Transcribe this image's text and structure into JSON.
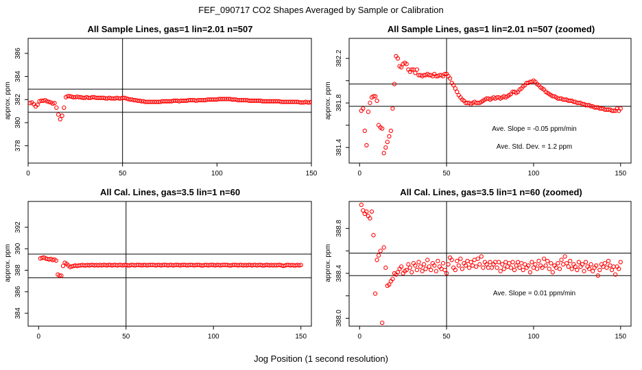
{
  "figure": {
    "title": "FEF_090717  CO2 Shapes Averaged by Sample or Calibration",
    "xlabel": "Jog Position (1 second resolution)"
  },
  "colors": {
    "points": "#ff0000",
    "axes": "#000000",
    "background": "#ffffff"
  },
  "chart_data": [
    {
      "type": "scatter",
      "title": "All Sample Lines, gas=1 lin=2.01 n=507",
      "ylabel": "approx. ppm",
      "xlim": [
        0,
        150
      ],
      "ylim": [
        376.5,
        387.3
      ],
      "xticks": [
        0,
        50,
        100,
        150
      ],
      "yticks": [
        378,
        380,
        382,
        384,
        386
      ],
      "hlines": [
        380.9,
        382.9
      ],
      "vlines": [
        50
      ],
      "annotations": [],
      "x": [
        1,
        2,
        3,
        4,
        5,
        6,
        7,
        8,
        9,
        10,
        11,
        12,
        13,
        14,
        15,
        16,
        17,
        18,
        19,
        20,
        21,
        22,
        23,
        24,
        25,
        26,
        27,
        28,
        29,
        30,
        31,
        32,
        33,
        34,
        35,
        36,
        37,
        38,
        39,
        40,
        41,
        42,
        43,
        44,
        45,
        46,
        47,
        48,
        49,
        50,
        51,
        52,
        53,
        54,
        55,
        56,
        57,
        58,
        59,
        60,
        61,
        62,
        63,
        64,
        65,
        66,
        67,
        68,
        69,
        70,
        71,
        72,
        73,
        74,
        75,
        76,
        77,
        78,
        79,
        80,
        81,
        82,
        83,
        84,
        85,
        86,
        87,
        88,
        89,
        90,
        91,
        92,
        93,
        94,
        95,
        96,
        97,
        98,
        99,
        100,
        101,
        102,
        103,
        104,
        105,
        106,
        107,
        108,
        109,
        110,
        111,
        112,
        113,
        114,
        115,
        116,
        117,
        118,
        119,
        120,
        121,
        122,
        123,
        124,
        125,
        126,
        127,
        128,
        129,
        130,
        131,
        132,
        133,
        134,
        135,
        136,
        137,
        138,
        139,
        140,
        141,
        142,
        143,
        144,
        145,
        146,
        147,
        148,
        149,
        150
      ],
      "y": [
        381.7,
        381.75,
        381.6,
        381.4,
        381.55,
        381.85,
        381.9,
        381.9,
        381.95,
        381.85,
        381.8,
        381.75,
        381.65,
        381.7,
        381.3,
        380.7,
        380.3,
        380.6,
        381.3,
        382.2,
        382.3,
        382.3,
        382.25,
        382.2,
        382.2,
        382.25,
        382.2,
        382.2,
        382.15,
        382.15,
        382.2,
        382.15,
        382.15,
        382.2,
        382.2,
        382.15,
        382.15,
        382.15,
        382.15,
        382.15,
        382.1,
        382.1,
        382.15,
        382.1,
        382.1,
        382.1,
        382.15,
        382.1,
        382.1,
        382.15,
        382.15,
        382.1,
        382.05,
        382,
        382,
        381.95,
        381.95,
        381.9,
        381.9,
        381.85,
        381.85,
        381.8,
        381.8,
        381.8,
        381.8,
        381.8,
        381.8,
        381.8,
        381.8,
        381.8,
        381.85,
        381.85,
        381.85,
        381.85,
        381.85,
        381.85,
        381.9,
        381.9,
        381.9,
        381.85,
        381.9,
        381.9,
        381.9,
        381.9,
        381.95,
        381.95,
        381.95,
        381.95,
        381.9,
        381.95,
        381.95,
        381.95,
        381.95,
        381.95,
        382,
        382,
        382,
        382,
        382,
        382,
        382.05,
        382.05,
        382.05,
        382.05,
        382.05,
        382.05,
        382.05,
        382,
        382,
        382,
        381.95,
        381.95,
        381.95,
        381.95,
        381.95,
        381.95,
        381.9,
        381.9,
        381.9,
        381.9,
        381.9,
        381.9,
        381.9,
        381.85,
        381.85,
        381.85,
        381.85,
        381.85,
        381.85,
        381.85,
        381.85,
        381.85,
        381.85,
        381.8,
        381.8,
        381.8,
        381.8,
        381.8,
        381.8,
        381.8,
        381.8,
        381.8,
        381.8,
        381.75,
        381.75,
        381.75,
        381.8,
        381.75,
        381.75,
        381.8
      ]
    },
    {
      "type": "scatter",
      "title": "All Sample Lines, gas=1 lin=2.01 n=507 (zoomed)",
      "ylabel": "approx. ppm",
      "xlim": [
        -6,
        156
      ],
      "ylim": [
        381.26,
        382.38
      ],
      "xticks": [
        0,
        50,
        100,
        150
      ],
      "yticks": [
        381.4,
        381.6,
        381.8,
        382.0,
        382.2
      ],
      "ytick_labels": [
        "381.4",
        "",
        "381.8",
        "",
        "382.2"
      ],
      "hlines": [
        381.77,
        381.97
      ],
      "vlines": [
        50
      ],
      "annotations": [
        "Ave. Slope =  -0.05  ppm/min",
        "Ave. Std. Dev. =  1.2  ppm"
      ],
      "x": [
        1,
        2,
        3,
        4,
        5,
        6,
        7,
        8,
        9,
        10,
        11,
        12,
        13,
        14,
        15,
        16,
        17,
        18,
        19,
        20,
        21,
        22,
        23,
        24,
        25,
        26,
        27,
        28,
        29,
        30,
        31,
        32,
        33,
        34,
        35,
        36,
        37,
        38,
        39,
        40,
        41,
        42,
        43,
        44,
        45,
        46,
        47,
        48,
        49,
        50,
        51,
        52,
        53,
        54,
        55,
        56,
        57,
        58,
        59,
        60,
        61,
        62,
        63,
        64,
        65,
        66,
        67,
        68,
        69,
        70,
        71,
        72,
        73,
        74,
        75,
        76,
        77,
        78,
        79,
        80,
        81,
        82,
        83,
        84,
        85,
        86,
        87,
        88,
        89,
        90,
        91,
        92,
        93,
        94,
        95,
        96,
        97,
        98,
        99,
        100,
        101,
        102,
        103,
        104,
        105,
        106,
        107,
        108,
        109,
        110,
        111,
        112,
        113,
        114,
        115,
        116,
        117,
        118,
        119,
        120,
        121,
        122,
        123,
        124,
        125,
        126,
        127,
        128,
        129,
        130,
        131,
        132,
        133,
        134,
        135,
        136,
        137,
        138,
        139,
        140,
        141,
        142,
        143,
        144,
        145,
        146,
        147,
        148,
        149,
        150
      ],
      "y": [
        381.73,
        381.75,
        381.55,
        381.42,
        381.72,
        381.8,
        381.85,
        381.86,
        381.86,
        381.82,
        381.6,
        381.58,
        381.57,
        381.35,
        381.4,
        381.45,
        381.5,
        381.55,
        381.75,
        381.97,
        382.22,
        382.2,
        382.13,
        382.12,
        382.15,
        382.16,
        382.15,
        382.1,
        382.08,
        382.1,
        382.1,
        382.07,
        382.1,
        382.05,
        382.05,
        382.04,
        382.05,
        382.05,
        382.06,
        382.05,
        382.05,
        382.04,
        382.06,
        382.04,
        382.04,
        382.05,
        382.05,
        382.04,
        382.06,
        382.06,
        382.04,
        382.02,
        381.98,
        381.96,
        381.93,
        381.9,
        381.87,
        381.85,
        381.83,
        381.82,
        381.8,
        381.8,
        381.8,
        381.79,
        381.8,
        381.81,
        381.8,
        381.8,
        381.8,
        381.81,
        381.82,
        381.83,
        381.84,
        381.84,
        381.83,
        381.84,
        381.85,
        381.84,
        381.85,
        381.85,
        381.84,
        381.85,
        381.86,
        381.85,
        381.86,
        381.87,
        381.88,
        381.9,
        381.9,
        381.89,
        381.9,
        381.92,
        381.93,
        381.95,
        381.96,
        381.98,
        381.98,
        381.99,
        381.99,
        382,
        381.99,
        381.97,
        381.96,
        381.94,
        381.93,
        381.92,
        381.9,
        381.89,
        381.88,
        381.87,
        381.86,
        381.86,
        381.85,
        381.84,
        381.84,
        381.84,
        381.83,
        381.83,
        381.83,
        381.82,
        381.82,
        381.82,
        381.81,
        381.81,
        381.8,
        381.8,
        381.8,
        381.79,
        381.79,
        381.78,
        381.78,
        381.78,
        381.77,
        381.77,
        381.76,
        381.76,
        381.76,
        381.75,
        381.75,
        381.75,
        381.74,
        381.74,
        381.74,
        381.74,
        381.73,
        381.73,
        381.73,
        381.75,
        381.73,
        381.75
      ]
    },
    {
      "type": "scatter",
      "title": "All Cal. Lines, gas=3.5 lin=1 n=60",
      "ylabel": "approx. ppm",
      "xlim": [
        -6,
        156
      ],
      "ylim": [
        382.8,
        394.4
      ],
      "xticks": [
        0,
        50,
        100,
        150
      ],
      "yticks": [
        384,
        386,
        388,
        390,
        392
      ],
      "hlines": [
        387.3,
        389.5
      ],
      "vlines": [
        50
      ],
      "annotations": [],
      "x": [
        1,
        2,
        3,
        4,
        5,
        6,
        7,
        8,
        9,
        10,
        11,
        12,
        13,
        14,
        15,
        16,
        17,
        18,
        19,
        20,
        21,
        22,
        23,
        24,
        25,
        26,
        27,
        28,
        29,
        30,
        31,
        32,
        33,
        34,
        35,
        36,
        37,
        38,
        39,
        40,
        41,
        42,
        43,
        44,
        45,
        46,
        47,
        48,
        49,
        50,
        51,
        52,
        53,
        54,
        55,
        56,
        57,
        58,
        59,
        60,
        61,
        62,
        63,
        64,
        65,
        66,
        67,
        68,
        69,
        70,
        71,
        72,
        73,
        74,
        75,
        76,
        77,
        78,
        79,
        80,
        81,
        82,
        83,
        84,
        85,
        86,
        87,
        88,
        89,
        90,
        91,
        92,
        93,
        94,
        95,
        96,
        97,
        98,
        99,
        100,
        101,
        102,
        103,
        104,
        105,
        106,
        107,
        108,
        109,
        110,
        111,
        112,
        113,
        114,
        115,
        116,
        117,
        118,
        119,
        120,
        121,
        122,
        123,
        124,
        125,
        126,
        127,
        128,
        129,
        130,
        131,
        132,
        133,
        134,
        135,
        136,
        137,
        138,
        139,
        140,
        141,
        142,
        143,
        144,
        145,
        146,
        147,
        148,
        149,
        150
      ],
      "y": [
        389.1,
        389.15,
        389.2,
        389.1,
        389.05,
        389.0,
        389.05,
        388.95,
        389.0,
        388.9,
        387.6,
        387.5,
        387.5,
        388.4,
        388.7,
        388.6,
        388.45,
        388.3,
        388.35,
        388.4,
        388.45,
        388.4,
        388.45,
        388.45,
        388.5,
        388.45,
        388.45,
        388.5,
        388.45,
        388.5,
        388.5,
        388.45,
        388.5,
        388.45,
        388.5,
        388.45,
        388.5,
        388.5,
        388.45,
        388.5,
        388.5,
        388.45,
        388.5,
        388.5,
        388.45,
        388.5,
        388.5,
        388.45,
        388.5,
        388.5,
        388.45,
        388.45,
        388.5,
        388.5,
        388.45,
        388.5,
        388.5,
        388.5,
        388.45,
        388.5,
        388.5,
        388.45,
        388.5,
        388.5,
        388.5,
        388.5,
        388.45,
        388.5,
        388.5,
        388.45,
        388.5,
        388.5,
        388.5,
        388.45,
        388.5,
        388.5,
        388.45,
        388.5,
        388.5,
        388.5,
        388.45,
        388.5,
        388.5,
        388.5,
        388.45,
        388.5,
        388.5,
        388.5,
        388.45,
        388.5,
        388.5,
        388.5,
        388.45,
        388.45,
        388.5,
        388.5,
        388.45,
        388.5,
        388.5,
        388.5,
        388.45,
        388.5,
        388.5,
        388.45,
        388.5,
        388.5,
        388.5,
        388.5,
        388.45,
        388.45,
        388.5,
        388.5,
        388.5,
        388.45,
        388.5,
        388.5,
        388.45,
        388.5,
        388.45,
        388.5,
        388.5,
        388.45,
        388.5,
        388.5,
        388.45,
        388.5,
        388.5,
        388.45,
        388.45,
        388.5,
        388.5,
        388.45,
        388.5,
        388.45,
        388.5,
        388.45,
        388.5,
        388.5,
        388.45,
        388.4,
        388.45,
        388.5,
        388.5,
        388.45,
        388.5,
        388.45,
        388.45,
        388.5,
        388.45,
        388.5
      ]
    },
    {
      "type": "scatter",
      "title": "All Cal. Lines, gas=3.5 lin=1 n=60 (zoomed)",
      "ylabel": "approx. ppm",
      "xlim": [
        -6,
        156
      ],
      "ylim": [
        387.93,
        389.04
      ],
      "xticks": [
        0,
        50,
        100,
        150
      ],
      "yticks": [
        388.0,
        388.2,
        388.4,
        388.6,
        388.8
      ],
      "ytick_labels": [
        "388.0",
        "",
        "388.4",
        "",
        "388.8"
      ],
      "hlines": [
        388.38,
        388.58
      ],
      "vlines": [
        50
      ],
      "annotations": [
        "Ave. Slope =  0.01  ppm/min"
      ],
      "x": [
        1,
        2,
        3,
        4,
        5,
        6,
        7,
        8,
        9,
        10,
        11,
        12,
        13,
        14,
        15,
        16,
        17,
        18,
        19,
        20,
        21,
        22,
        23,
        24,
        25,
        26,
        27,
        28,
        29,
        30,
        31,
        32,
        33,
        34,
        35,
        36,
        37,
        38,
        39,
        40,
        41,
        42,
        43,
        44,
        45,
        46,
        47,
        48,
        49,
        50,
        51,
        52,
        53,
        54,
        55,
        56,
        57,
        58,
        59,
        60,
        61,
        62,
        63,
        64,
        65,
        66,
        67,
        68,
        69,
        70,
        71,
        72,
        73,
        74,
        75,
        76,
        77,
        78,
        79,
        80,
        81,
        82,
        83,
        84,
        85,
        86,
        87,
        88,
        89,
        90,
        91,
        92,
        93,
        94,
        95,
        96,
        97,
        98,
        99,
        100,
        101,
        102,
        103,
        104,
        105,
        106,
        107,
        108,
        109,
        110,
        111,
        112,
        113,
        114,
        115,
        116,
        117,
        118,
        119,
        120,
        121,
        122,
        123,
        124,
        125,
        126,
        127,
        128,
        129,
        130,
        131,
        132,
        133,
        134,
        135,
        136,
        137,
        138,
        139,
        140,
        141,
        142,
        143,
        144,
        145,
        146,
        147,
        148,
        149,
        150
      ],
      "y": [
        389.01,
        388.96,
        388.93,
        388.95,
        388.91,
        388.89,
        388.95,
        388.74,
        388.22,
        388.52,
        388.56,
        388.6,
        387.96,
        388.63,
        388.45,
        388.29,
        388.3,
        388.33,
        388.35,
        388.4,
        388.39,
        388.41,
        388.44,
        388.46,
        388.4,
        388.42,
        388.43,
        388.48,
        388.45,
        388.41,
        388.49,
        388.47,
        388.43,
        388.5,
        388.46,
        388.42,
        388.48,
        388.44,
        388.52,
        388.46,
        388.43,
        388.49,
        388.47,
        388.42,
        388.51,
        388.46,
        388.44,
        388.49,
        388.43,
        388.4,
        388.48,
        388.54,
        388.52,
        388.45,
        388.43,
        388.51,
        388.47,
        388.53,
        388.44,
        388.49,
        388.47,
        388.51,
        388.45,
        388.5,
        388.47,
        388.52,
        388.46,
        388.53,
        388.48,
        388.55,
        388.45,
        388.5,
        388.48,
        388.45,
        388.5,
        388.45,
        388.48,
        388.5,
        388.45,
        388.5,
        388.42,
        388.48,
        388.44,
        388.5,
        388.46,
        388.49,
        388.45,
        388.5,
        388.43,
        388.47,
        388.5,
        388.45,
        388.49,
        388.43,
        388.48,
        388.45,
        388.47,
        388.41,
        388.5,
        388.45,
        388.48,
        388.44,
        388.51,
        388.47,
        388.45,
        388.53,
        388.47,
        388.51,
        388.44,
        388.49,
        388.41,
        388.47,
        388.45,
        388.49,
        388.44,
        388.52,
        388.48,
        388.55,
        388.49,
        388.46,
        388.51,
        388.44,
        388.48,
        388.46,
        388.43,
        388.5,
        388.46,
        388.48,
        388.42,
        388.5,
        388.46,
        388.44,
        388.48,
        388.42,
        388.45,
        388.47,
        388.38,
        388.43,
        388.48,
        388.46,
        388.49,
        388.45,
        388.51,
        388.47,
        388.43,
        388.46,
        388.39,
        388.46,
        388.44,
        388.5
      ]
    }
  ]
}
